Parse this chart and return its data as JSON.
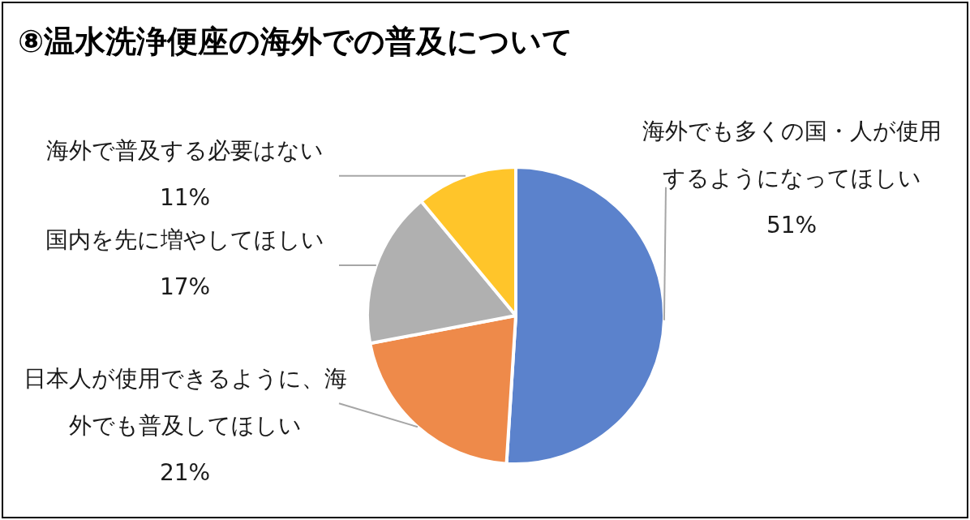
{
  "chart_data": {
    "type": "pie",
    "title": "⑧温水洗浄便座の海外での普及について",
    "categories": [
      "海外でも多くの国・人が使用するようになってほしい",
      "日本人が使用できるように、海外でも普及してほしい",
      "国内を先に増やしてほしい",
      "海外で普及する必要はない"
    ],
    "values": [
      51,
      21,
      17,
      11
    ],
    "colors": [
      "#5b82cc",
      "#ee8a4a",
      "#b0b0b0",
      "#ffc52a"
    ],
    "value_labels": [
      "51%",
      "21%",
      "17%",
      "11%"
    ],
    "legend": false
  }
}
